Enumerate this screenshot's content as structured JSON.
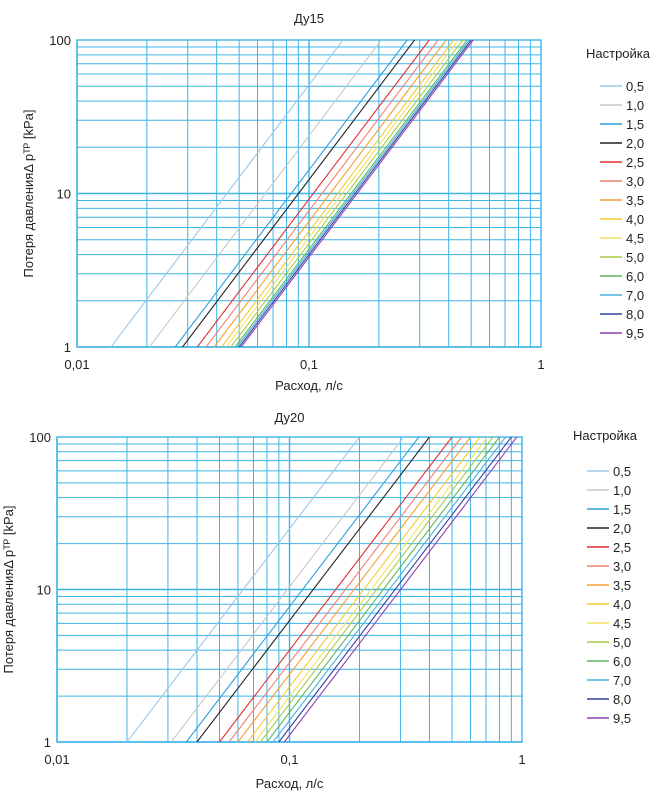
{
  "chart_data": [
    {
      "type": "line",
      "title": "Ду15",
      "xlabel": "Расход, л/с",
      "ylabel": "Потеря давленияΔ pᵀᴾ [kPa]",
      "xscale": "log",
      "yscale": "log",
      "xlim": [
        0.01,
        1
      ],
      "ylim": [
        1,
        100
      ],
      "x_ticks": [
        "0,01",
        "0,1",
        "1"
      ],
      "y_ticks": [
        "1",
        "10",
        "100"
      ],
      "grid": true,
      "legend_title": "Настройка",
      "legend_position": "right",
      "series": [
        {
          "name": "0,5",
          "color": "#9cc8e8",
          "x": [
            0.014,
            0.14
          ],
          "y": [
            1,
            100
          ]
        },
        {
          "name": "1,0",
          "color": "#c8c8c8",
          "x": [
            0.0205,
            0.205
          ],
          "y": [
            1,
            100
          ]
        },
        {
          "name": "1,5",
          "color": "#2f9fd8",
          "x": [
            0.0265,
            0.265
          ],
          "y": [
            1,
            100
          ]
        },
        {
          "name": "2,0",
          "color": "#222222",
          "x": [
            0.0285,
            0.285
          ],
          "y": [
            1,
            100
          ]
        },
        {
          "name": "2,5",
          "color": "#e03030",
          "x": [
            0.033,
            0.33
          ],
          "y": [
            1,
            100
          ]
        },
        {
          "name": "3,0",
          "color": "#f08070",
          "x": [
            0.036,
            0.36
          ],
          "y": [
            1,
            100
          ]
        },
        {
          "name": "3,5",
          "color": "#f5a030",
          "x": [
            0.039,
            0.39
          ],
          "y": [
            1,
            100
          ]
        },
        {
          "name": "4,0",
          "color": "#f8c830",
          "x": [
            0.042,
            0.42
          ],
          "y": [
            1,
            100
          ]
        },
        {
          "name": "4,5",
          "color": "#f3e060",
          "x": [
            0.044,
            0.44
          ],
          "y": [
            1,
            100
          ]
        },
        {
          "name": "5,0",
          "color": "#a8cc48",
          "x": [
            0.046,
            0.46
          ],
          "y": [
            1,
            100
          ]
        },
        {
          "name": "6,0",
          "color": "#5cb85c",
          "x": [
            0.048,
            0.48
          ],
          "y": [
            1,
            100
          ]
        },
        {
          "name": "7,0",
          "color": "#48b0e0",
          "x": [
            0.049,
            0.49
          ],
          "y": [
            1,
            100
          ]
        },
        {
          "name": "8,0",
          "color": "#3040a0",
          "x": [
            0.05,
            0.5
          ],
          "y": [
            1,
            100
          ]
        },
        {
          "name": "9,5",
          "color": "#9040b0",
          "x": [
            0.051,
            0.51
          ],
          "y": [
            1,
            100
          ]
        }
      ]
    },
    {
      "type": "line",
      "title": "Ду20",
      "xlabel": "Расход, л/с",
      "ylabel": "Потеря давленияΔ pᵀᴾ [kPa]",
      "xscale": "log",
      "yscale": "log",
      "xlim": [
        0.01,
        1
      ],
      "ylim": [
        1,
        100
      ],
      "x_ticks": [
        "0,01",
        "0,1",
        "1"
      ],
      "y_ticks": [
        "1",
        "10",
        "100"
      ],
      "grid": true,
      "legend_title": "Настройка",
      "legend_position": "right",
      "series": [
        {
          "name": "0,5",
          "color": "#9cc8e8",
          "x": [
            0.02,
            0.2
          ],
          "y": [
            1,
            100
          ]
        },
        {
          "name": "1,0",
          "color": "#c8c8c8",
          "x": [
            0.031,
            0.31
          ],
          "y": [
            1,
            100
          ]
        },
        {
          "name": "1,5",
          "color": "#2f9fd8",
          "x": [
            0.036,
            0.36
          ],
          "y": [
            1,
            100
          ]
        },
        {
          "name": "2,0",
          "color": "#222222",
          "x": [
            0.04,
            0.4
          ],
          "y": [
            1,
            100
          ]
        },
        {
          "name": "2,5",
          "color": "#e03030",
          "x": [
            0.05,
            0.5
          ],
          "y": [
            1,
            100
          ]
        },
        {
          "name": "3,0",
          "color": "#f08070",
          "x": [
            0.055,
            0.55
          ],
          "y": [
            1,
            100
          ]
        },
        {
          "name": "3,5",
          "color": "#f5a030",
          "x": [
            0.06,
            0.6
          ],
          "y": [
            1,
            100
          ]
        },
        {
          "name": "4,0",
          "color": "#f8c830",
          "x": [
            0.066,
            0.66
          ],
          "y": [
            1,
            100
          ]
        },
        {
          "name": "4,5",
          "color": "#f3e060",
          "x": [
            0.071,
            0.71
          ],
          "y": [
            1,
            100
          ]
        },
        {
          "name": "5,0",
          "color": "#a8cc48",
          "x": [
            0.075,
            0.75
          ],
          "y": [
            1,
            100
          ]
        },
        {
          "name": "6,0",
          "color": "#5cb85c",
          "x": [
            0.08,
            0.8
          ],
          "y": [
            1,
            100
          ]
        },
        {
          "name": "7,0",
          "color": "#48b0e0",
          "x": [
            0.085,
            0.85
          ],
          "y": [
            1,
            100
          ]
        },
        {
          "name": "8,0",
          "color": "#3040a0",
          "x": [
            0.09,
            0.9
          ],
          "y": [
            1,
            100
          ]
        },
        {
          "name": "9,5",
          "color": "#9040b0",
          "x": [
            0.095,
            0.95
          ],
          "y": [
            1,
            100
          ]
        }
      ]
    }
  ],
  "colors": {
    "grid": "#3fb3e6",
    "axis": "#555555",
    "text": "#222222"
  }
}
